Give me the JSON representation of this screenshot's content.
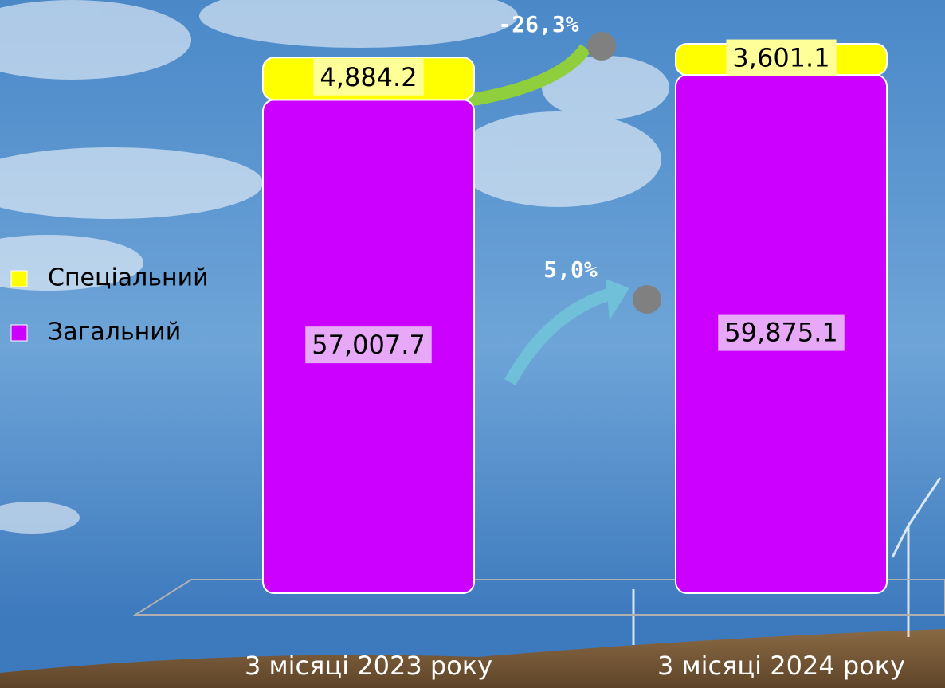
{
  "chart_data": {
    "type": "stacked-bar",
    "categories": [
      "3 місяці 2023 року",
      "3 місяці 2024 року"
    ],
    "series": [
      {
        "name": "Загальний",
        "color": "#cc00ff",
        "values": [
          57007.7,
          59875.1
        ],
        "value_labels": [
          "57,007.7",
          "59,875.1"
        ]
      },
      {
        "name": "Спеціальний",
        "color": "#ffff00",
        "values": [
          4884.2,
          3601.1
        ],
        "value_labels": [
          "4,884.2",
          "3,601.1"
        ]
      }
    ],
    "annotations": [
      "-26,3%",
      "5,0%"
    ],
    "legend": "left"
  }
}
